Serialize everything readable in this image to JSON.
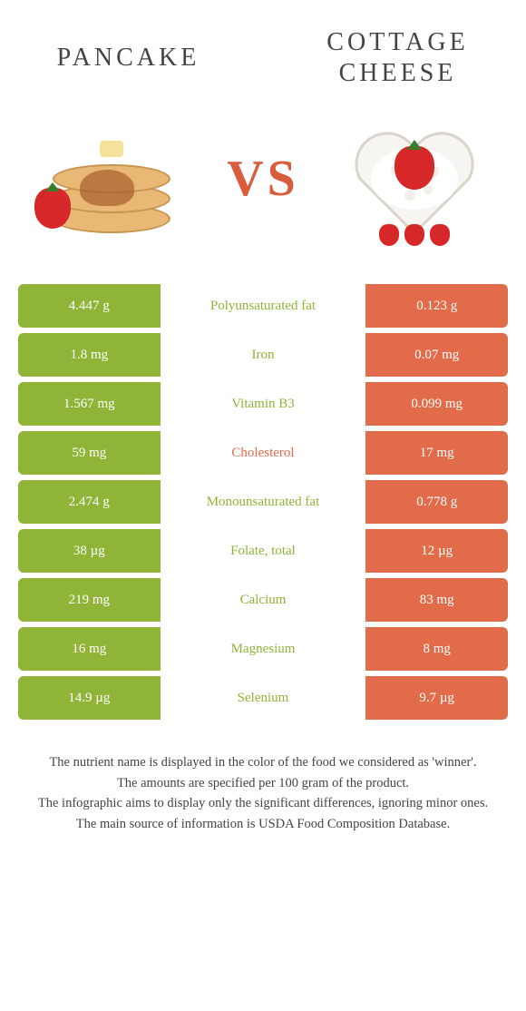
{
  "colors": {
    "left": "#8fb437",
    "right": "#e26b49",
    "vs": "#d95c3b",
    "text": "#444444"
  },
  "header": {
    "left_title": "PANCAKE",
    "right_title": "COTTAGE CHEESE",
    "vs": "VS"
  },
  "rows": [
    {
      "label": "Polyunsaturated fat",
      "left": "4.447 g",
      "right": "0.123 g",
      "winner": "left"
    },
    {
      "label": "Iron",
      "left": "1.8 mg",
      "right": "0.07 mg",
      "winner": "left"
    },
    {
      "label": "Vitamin B3",
      "left": "1.567 mg",
      "right": "0.099 mg",
      "winner": "left"
    },
    {
      "label": "Cholesterol",
      "left": "59 mg",
      "right": "17 mg",
      "winner": "right"
    },
    {
      "label": "Monounsaturated fat",
      "left": "2.474 g",
      "right": "0.778 g",
      "winner": "left"
    },
    {
      "label": "Folate, total",
      "left": "38 µg",
      "right": "12 µg",
      "winner": "left"
    },
    {
      "label": "Calcium",
      "left": "219 mg",
      "right": "83 mg",
      "winner": "left"
    },
    {
      "label": "Magnesium",
      "left": "16 mg",
      "right": "8 mg",
      "winner": "left"
    },
    {
      "label": "Selenium",
      "left": "14.9 µg",
      "right": "9.7 µg",
      "winner": "left"
    }
  ],
  "footer": {
    "line1": "The nutrient name is displayed in the color of the food we considered as 'winner'.",
    "line2": "The amounts are specified per 100 gram of the product.",
    "line3": "The infographic aims to display only the significant differences, ignoring minor ones.",
    "line4": "The main source of information is USDA Food Composition Database."
  }
}
